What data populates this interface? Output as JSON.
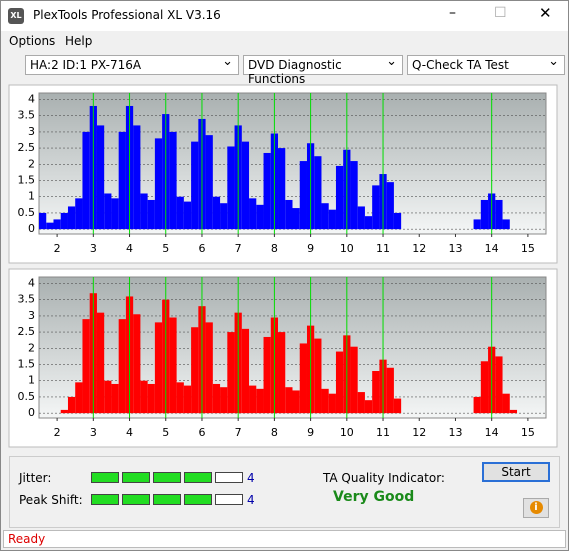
{
  "window": {
    "title": "PlexTools Professional XL V3.16",
    "icon": "XL"
  },
  "menu": [
    "Options",
    "Help"
  ],
  "toolbar": [
    "HA:2 ID:1  PX-716A",
    "DVD Diagnostic Functions",
    "Q-Check TA Test"
  ],
  "chart_data": [
    {
      "type": "bar",
      "color": "#0000ff",
      "marker_color": "#00dd00",
      "xlim": [
        1.5,
        15.5
      ],
      "ylim": [
        -0.15,
        4.2
      ],
      "xticks": [
        2,
        3,
        4,
        5,
        6,
        7,
        8,
        9,
        10,
        11,
        12,
        13,
        14,
        15
      ],
      "yticks": [
        0,
        0.5,
        1,
        1.5,
        2,
        2.5,
        3,
        3.5,
        4
      ],
      "grid": true,
      "markers": [
        3,
        4,
        5,
        6,
        7,
        8,
        9,
        10,
        11,
        14
      ],
      "x": [
        1.6,
        1.8,
        2.0,
        2.2,
        2.4,
        2.6,
        2.8,
        3.0,
        3.2,
        3.4,
        3.6,
        3.8,
        4.0,
        4.2,
        4.4,
        4.6,
        4.8,
        5.0,
        5.2,
        5.4,
        5.6,
        5.8,
        6.0,
        6.2,
        6.4,
        6.6,
        6.8,
        7.0,
        7.2,
        7.4,
        7.6,
        7.8,
        8.0,
        8.2,
        8.4,
        8.6,
        8.8,
        9.0,
        9.2,
        9.4,
        9.6,
        9.8,
        10.0,
        10.2,
        10.4,
        10.6,
        10.8,
        11.0,
        11.2,
        11.4,
        11.6,
        11.8,
        12.0,
        12.2,
        12.4,
        12.6,
        12.8,
        13.0,
        13.2,
        13.4,
        13.6,
        13.8,
        14.0,
        14.2,
        14.4,
        14.6,
        14.8,
        15.0
      ],
      "values": [
        0.5,
        0.2,
        0.3,
        0.5,
        0.7,
        0.95,
        3.0,
        3.8,
        3.2,
        1.1,
        0.95,
        3.0,
        3.8,
        3.2,
        1.1,
        0.9,
        2.8,
        3.55,
        3.0,
        1.0,
        0.85,
        2.7,
        3.4,
        2.9,
        1.0,
        0.8,
        2.55,
        3.2,
        2.7,
        0.95,
        0.75,
        2.35,
        2.95,
        2.5,
        0.9,
        0.65,
        2.1,
        2.65,
        2.25,
        0.8,
        0.6,
        1.95,
        2.45,
        2.1,
        0.7,
        0.4,
        1.35,
        1.7,
        1.45,
        0.5,
        0,
        0,
        0,
        0,
        0,
        0,
        0,
        0,
        0,
        0,
        0.3,
        0.9,
        1.1,
        0.9,
        0.3,
        0,
        0,
        0
      ]
    },
    {
      "type": "bar",
      "color": "#ff0000",
      "marker_color": "#00dd00",
      "xlim": [
        1.5,
        15.5
      ],
      "ylim": [
        -0.15,
        4.2
      ],
      "xticks": [
        2,
        3,
        4,
        5,
        6,
        7,
        8,
        9,
        10,
        11,
        12,
        13,
        14,
        15
      ],
      "yticks": [
        0,
        0.5,
        1,
        1.5,
        2,
        2.5,
        3,
        3.5,
        4
      ],
      "grid": true,
      "markers": [
        3,
        4,
        5,
        6,
        7,
        8,
        9,
        10,
        11,
        14
      ],
      "x": [
        1.6,
        1.8,
        2.0,
        2.2,
        2.4,
        2.6,
        2.8,
        3.0,
        3.2,
        3.4,
        3.6,
        3.8,
        4.0,
        4.2,
        4.4,
        4.6,
        4.8,
        5.0,
        5.2,
        5.4,
        5.6,
        5.8,
        6.0,
        6.2,
        6.4,
        6.6,
        6.8,
        7.0,
        7.2,
        7.4,
        7.6,
        7.8,
        8.0,
        8.2,
        8.4,
        8.6,
        8.8,
        9.0,
        9.2,
        9.4,
        9.6,
        9.8,
        10.0,
        10.2,
        10.4,
        10.6,
        10.8,
        11.0,
        11.2,
        11.4,
        11.6,
        11.8,
        12.0,
        12.2,
        12.4,
        12.6,
        12.8,
        13.0,
        13.2,
        13.4,
        13.6,
        13.8,
        14.0,
        14.2,
        14.4,
        14.6,
        14.8,
        15.0
      ],
      "values": [
        0,
        0,
        0,
        0.1,
        0.5,
        0.95,
        2.9,
        3.7,
        3.1,
        1.0,
        0.9,
        2.9,
        3.6,
        3.05,
        1.0,
        0.9,
        2.8,
        3.5,
        2.95,
        0.95,
        0.85,
        2.65,
        3.3,
        2.8,
        0.9,
        0.8,
        2.5,
        3.1,
        2.6,
        0.85,
        0.75,
        2.35,
        2.95,
        2.5,
        0.8,
        0.7,
        2.15,
        2.7,
        2.3,
        0.75,
        0.6,
        1.9,
        2.4,
        2.05,
        0.65,
        0.4,
        1.3,
        1.65,
        1.4,
        0.45,
        0,
        0,
        0,
        0,
        0,
        0,
        0,
        0,
        0,
        0,
        0.5,
        1.6,
        2.05,
        1.75,
        0.6,
        0.1,
        0,
        0
      ]
    }
  ],
  "results": {
    "jitter": {
      "label": "Jitter:",
      "value": 4
    },
    "peak_shift": {
      "label": "Peak Shift:",
      "value": 4
    },
    "ta_label": "TA Quality Indicator:",
    "ta_value": "Very Good",
    "start": "Start"
  },
  "status": "Ready"
}
